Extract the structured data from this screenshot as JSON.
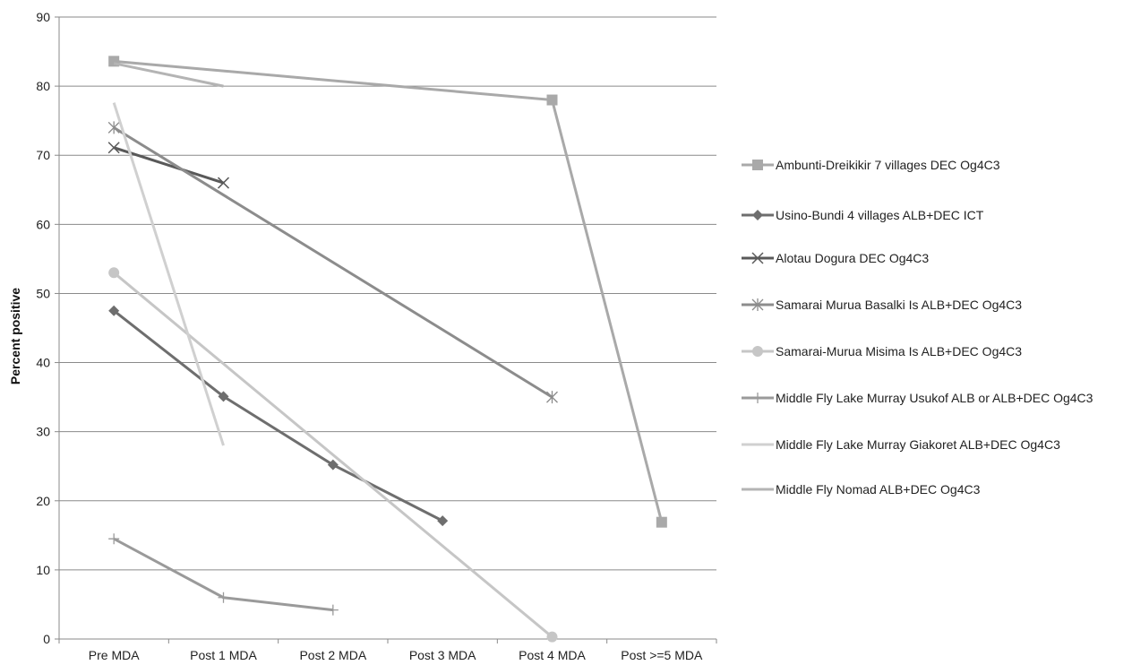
{
  "chart_data": {
    "type": "line",
    "title": "",
    "xlabel": "",
    "ylabel": "Percent positive",
    "ylim": [
      0,
      90
    ],
    "yticks": [
      0,
      10,
      20,
      30,
      40,
      50,
      60,
      70,
      80,
      90
    ],
    "grid": "horizontal",
    "legend_position": "right",
    "categories": [
      "Pre MDA",
      "Post 1 MDA",
      "Post 2 MDA",
      "Post 3 MDA",
      "Post 4 MDA",
      "Post >=5 MDA"
    ],
    "series": [
      {
        "name": "Ambunti-Dreikikir 7 villages DEC Og4C3",
        "color": "#a9a9a9",
        "marker": "square",
        "values": [
          83.6,
          null,
          null,
          null,
          78,
          16.9
        ]
      },
      {
        "name": "Usino-Bundi 4 villages ALB+DEC ICT",
        "color": "#6e6e6e",
        "marker": "diamond",
        "values": [
          47.5,
          35.1,
          25.2,
          17.1,
          null,
          null
        ]
      },
      {
        "name": "Alotau Dogura DEC Og4C3",
        "color": "#595959",
        "marker": "x",
        "values": [
          71.1,
          66,
          null,
          null,
          null,
          null
        ]
      },
      {
        "name": "Samarai Murua Basalki Is ALB+DEC Og4C3",
        "color": "#8c8c8c",
        "marker": "star",
        "values": [
          74,
          null,
          null,
          null,
          35,
          null
        ]
      },
      {
        "name": "Samarai-Murua Misima Is ALB+DEC Og4C3",
        "color": "#c6c6c6",
        "marker": "circle",
        "values": [
          53,
          null,
          null,
          null,
          0.3,
          null
        ]
      },
      {
        "name": "Middle Fly Lake Murray Usukof ALB or ALB+DEC Og4C3",
        "color": "#9a9a9a",
        "marker": "plus",
        "values": [
          14.5,
          6,
          4.2,
          null,
          null,
          null
        ]
      },
      {
        "name": "Middle Fly Lake Murray Giakoret ALB+DEC Og4C3",
        "color": "#d0d0d0",
        "marker": "none",
        "values": [
          77.6,
          28,
          null,
          null,
          null,
          null
        ]
      },
      {
        "name": "Middle Fly Nomad ALB+DEC Og4C3",
        "color": "#b4b4b4",
        "marker": "none",
        "values": [
          83.3,
          80,
          null,
          null,
          null,
          null
        ]
      }
    ]
  }
}
